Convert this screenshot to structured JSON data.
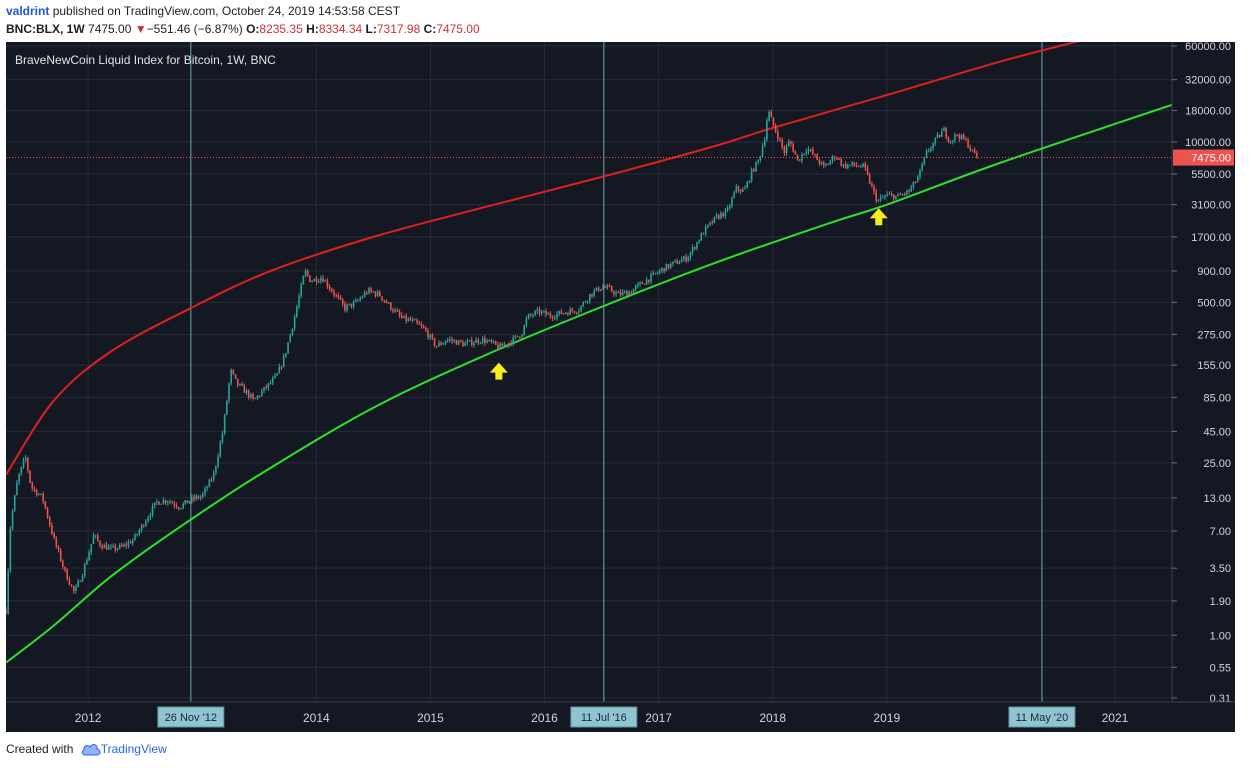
{
  "header": {
    "author": "valdrint",
    "published_text": "published on TradingView.com, October 24, 2019 14:53:58 CEST",
    "symbol": "BNC:BLX, 1W",
    "price": "7475.00",
    "change_arrow": "▼",
    "change": "−551.46 (−6.87%)",
    "open_label": "O:",
    "open": "8235.35",
    "high_label": "H:",
    "high": "8334.34",
    "low_label": "L:",
    "low": "7317.98",
    "close_label": "C:",
    "close": "7475.00"
  },
  "footer": {
    "created_with": "Created with",
    "brand": "TradingView"
  },
  "colors": {
    "background": "#141823",
    "grid": "#262b38",
    "candle_up": "#26a69a",
    "candle_down": "#ef5350",
    "upper_curve": "#e02020",
    "lower_curve": "#2ee02e",
    "vline": "#5f8f9c",
    "arrow": "#f5ee1c",
    "price_tag": "#ef5350"
  },
  "chart_data": {
    "type": "candlestick",
    "title": "BraveNewCoin Liquid Index for Bitcoin, 1W, BNC",
    "y_scale": "log",
    "y_tick_labels": [
      "60000.00",
      "32000.00",
      "18000.00",
      "10000.00",
      "5500.00",
      "3100.00",
      "1700.00",
      "900.00",
      "500.00",
      "275.00",
      "155.00",
      "85.00",
      "45.00",
      "25.00",
      "13.00",
      "7.00",
      "3.50",
      "1.90",
      "1.00",
      "0.55",
      "0.31"
    ],
    "x_range": [
      2011.28,
      2021.5
    ],
    "x_tick_labels": [
      {
        "label": "2012",
        "x": 2012.0
      },
      {
        "label": "2014",
        "x": 2014.0
      },
      {
        "label": "2015",
        "x": 2015.0
      },
      {
        "label": "2016",
        "x": 2016.0
      },
      {
        "label": "2017",
        "x": 2017.0
      },
      {
        "label": "2018",
        "x": 2018.0
      },
      {
        "label": "2019",
        "x": 2019.0
      },
      {
        "label": "2021",
        "x": 2021.0
      }
    ],
    "current_price": {
      "value": 7475,
      "label": "7475.00"
    },
    "vertical_markers": [
      {
        "label": "26 Nov '12",
        "x": 2012.9
      },
      {
        "label": "11 Jul '16",
        "x": 2016.52
      },
      {
        "label": "11 May '20",
        "x": 2020.36
      }
    ],
    "annotations": [
      {
        "type": "arrow-up",
        "x": 2015.6,
        "y": 140
      },
      {
        "type": "arrow-up",
        "x": 2018.93,
        "y": 2500
      }
    ],
    "curves": [
      {
        "name": "upper band",
        "color": "#e02020",
        "points": [
          [
            2011.28,
            20
          ],
          [
            2011.7,
            80
          ],
          [
            2012.2,
            200
          ],
          [
            2012.9,
            450
          ],
          [
            2013.6,
            900
          ],
          [
            2014.5,
            1700
          ],
          [
            2015.5,
            3000
          ],
          [
            2016.5,
            5200
          ],
          [
            2017.5,
            9300
          ],
          [
            2018.0,
            13000
          ],
          [
            2019.0,
            24000
          ],
          [
            2020.0,
            45000
          ],
          [
            2020.8,
            70000
          ]
        ]
      },
      {
        "name": "lower band",
        "color": "#2ee02e",
        "points": [
          [
            2011.28,
            0.6
          ],
          [
            2011.7,
            1.2
          ],
          [
            2012.2,
            3.0
          ],
          [
            2012.8,
            7.5
          ],
          [
            2013.5,
            20
          ],
          [
            2014.5,
            70
          ],
          [
            2015.5,
            190
          ],
          [
            2016.5,
            460
          ],
          [
            2017.5,
            1050
          ],
          [
            2018.5,
            2200
          ],
          [
            2019.0,
            3100
          ],
          [
            2020.0,
            6800
          ],
          [
            2021.5,
            20000
          ]
        ]
      }
    ],
    "price_path": [
      [
        2011.28,
        1.6
      ],
      [
        2011.32,
        8
      ],
      [
        2011.38,
        18
      ],
      [
        2011.45,
        28
      ],
      [
        2011.5,
        16
      ],
      [
        2011.6,
        13
      ],
      [
        2011.7,
        6
      ],
      [
        2011.8,
        3.2
      ],
      [
        2011.88,
        2.2
      ],
      [
        2011.95,
        3.2
      ],
      [
        2012.0,
        4.5
      ],
      [
        2012.05,
        6.5
      ],
      [
        2012.1,
        5.5
      ],
      [
        2012.2,
        5.0
      ],
      [
        2012.3,
        5.2
      ],
      [
        2012.4,
        6
      ],
      [
        2012.5,
        8.5
      ],
      [
        2012.6,
        12
      ],
      [
        2012.7,
        12.5
      ],
      [
        2012.8,
        11
      ],
      [
        2012.9,
        12.5
      ],
      [
        2013.0,
        13.5
      ],
      [
        2013.1,
        20
      ],
      [
        2013.18,
        45
      ],
      [
        2013.25,
        140
      ],
      [
        2013.3,
        110
      ],
      [
        2013.38,
        95
      ],
      [
        2013.45,
        80
      ],
      [
        2013.55,
        100
      ],
      [
        2013.65,
        125
      ],
      [
        2013.72,
        180
      ],
      [
        2013.8,
        350
      ],
      [
        2013.9,
        900
      ],
      [
        2013.95,
        750
      ],
      [
        2014.05,
        800
      ],
      [
        2014.15,
        600
      ],
      [
        2014.25,
        450
      ],
      [
        2014.35,
        500
      ],
      [
        2014.45,
        620
      ],
      [
        2014.55,
        580
      ],
      [
        2014.65,
        460
      ],
      [
        2014.75,
        370
      ],
      [
        2014.85,
        350
      ],
      [
        2014.95,
        300
      ],
      [
        2015.05,
        220
      ],
      [
        2015.15,
        250
      ],
      [
        2015.3,
        230
      ],
      [
        2015.45,
        250
      ],
      [
        2015.55,
        230
      ],
      [
        2015.6,
        215
      ],
      [
        2015.7,
        240
      ],
      [
        2015.8,
        280
      ],
      [
        2015.85,
        380
      ],
      [
        2015.95,
        420
      ],
      [
        2016.05,
        390
      ],
      [
        2016.15,
        410
      ],
      [
        2016.3,
        440
      ],
      [
        2016.4,
        580
      ],
      [
        2016.5,
        670
      ],
      [
        2016.55,
        650
      ],
      [
        2016.65,
        580
      ],
      [
        2016.75,
        610
      ],
      [
        2016.85,
        710
      ],
      [
        2016.95,
        820
      ],
      [
        2017.05,
        950
      ],
      [
        2017.15,
        1050
      ],
      [
        2017.25,
        1150
      ],
      [
        2017.4,
        1900
      ],
      [
        2017.5,
        2400
      ],
      [
        2017.55,
        2600
      ],
      [
        2017.6,
        2700
      ],
      [
        2017.68,
        4200
      ],
      [
        2017.75,
        4000
      ],
      [
        2017.82,
        5800
      ],
      [
        2017.88,
        7200
      ],
      [
        2017.93,
        11000
      ],
      [
        2017.96,
        18000
      ],
      [
        2018.0,
        14000
      ],
      [
        2018.05,
        11000
      ],
      [
        2018.1,
        8200
      ],
      [
        2018.15,
        10200
      ],
      [
        2018.22,
        7000
      ],
      [
        2018.3,
        9000
      ],
      [
        2018.38,
        7400
      ],
      [
        2018.45,
        6200
      ],
      [
        2018.55,
        7800
      ],
      [
        2018.62,
        6400
      ],
      [
        2018.7,
        6500
      ],
      [
        2018.8,
        6300
      ],
      [
        2018.88,
        4000
      ],
      [
        2018.92,
        3300
      ],
      [
        2019.0,
        3700
      ],
      [
        2019.1,
        3600
      ],
      [
        2019.2,
        4000
      ],
      [
        2019.28,
        5300
      ],
      [
        2019.35,
        8200
      ],
      [
        2019.45,
        11000
      ],
      [
        2019.5,
        12500
      ],
      [
        2019.55,
        10200
      ],
      [
        2019.62,
        11500
      ],
      [
        2019.7,
        10000
      ],
      [
        2019.75,
        8300
      ],
      [
        2019.8,
        7475
      ]
    ]
  }
}
